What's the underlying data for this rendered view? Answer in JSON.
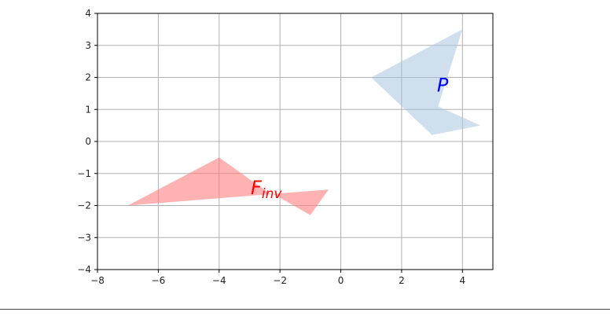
{
  "chart_data": {
    "type": "polygon",
    "grid": true,
    "xlim": [
      -8,
      5
    ],
    "ylim": [
      -4,
      4
    ],
    "xticks": [
      -8,
      -6,
      -4,
      -2,
      0,
      2,
      4
    ],
    "yticks": [
      -4,
      -3,
      -2,
      -1,
      0,
      1,
      2,
      3,
      4
    ],
    "xtick_labels": [
      "−8",
      "−6",
      "−4",
      "−2",
      "0",
      "2",
      "4"
    ],
    "ytick_labels": [
      "−4",
      "−3",
      "−2",
      "−1",
      "0",
      "1",
      "2",
      "3",
      "4"
    ],
    "shapes": [
      {
        "label": "P",
        "label_sub": "",
        "label_at": [
          3.35,
          1.75
        ],
        "color": "#a7c4df",
        "label_color": "#0000ff",
        "opacity": 0.55,
        "points": [
          [
            1.0,
            2.0
          ],
          [
            4.0,
            3.5
          ],
          [
            3.2,
            1.1
          ],
          [
            3.3,
            1.05
          ],
          [
            4.6,
            0.5
          ],
          [
            3.0,
            0.2
          ]
        ]
      },
      {
        "label": "F",
        "label_sub": "inv",
        "label_at": [
          -2.45,
          -1.45
        ],
        "color": "#ff7f7f",
        "label_color": "#ff0000",
        "opacity": 0.6,
        "points": [
          [
            -7.0,
            -2.0
          ],
          [
            -4.0,
            -0.5
          ],
          [
            -2.3,
            -1.65
          ],
          [
            -2.2,
            -1.65
          ],
          [
            -1.0,
            -2.3
          ],
          [
            -0.4,
            -1.5
          ]
        ]
      }
    ]
  }
}
